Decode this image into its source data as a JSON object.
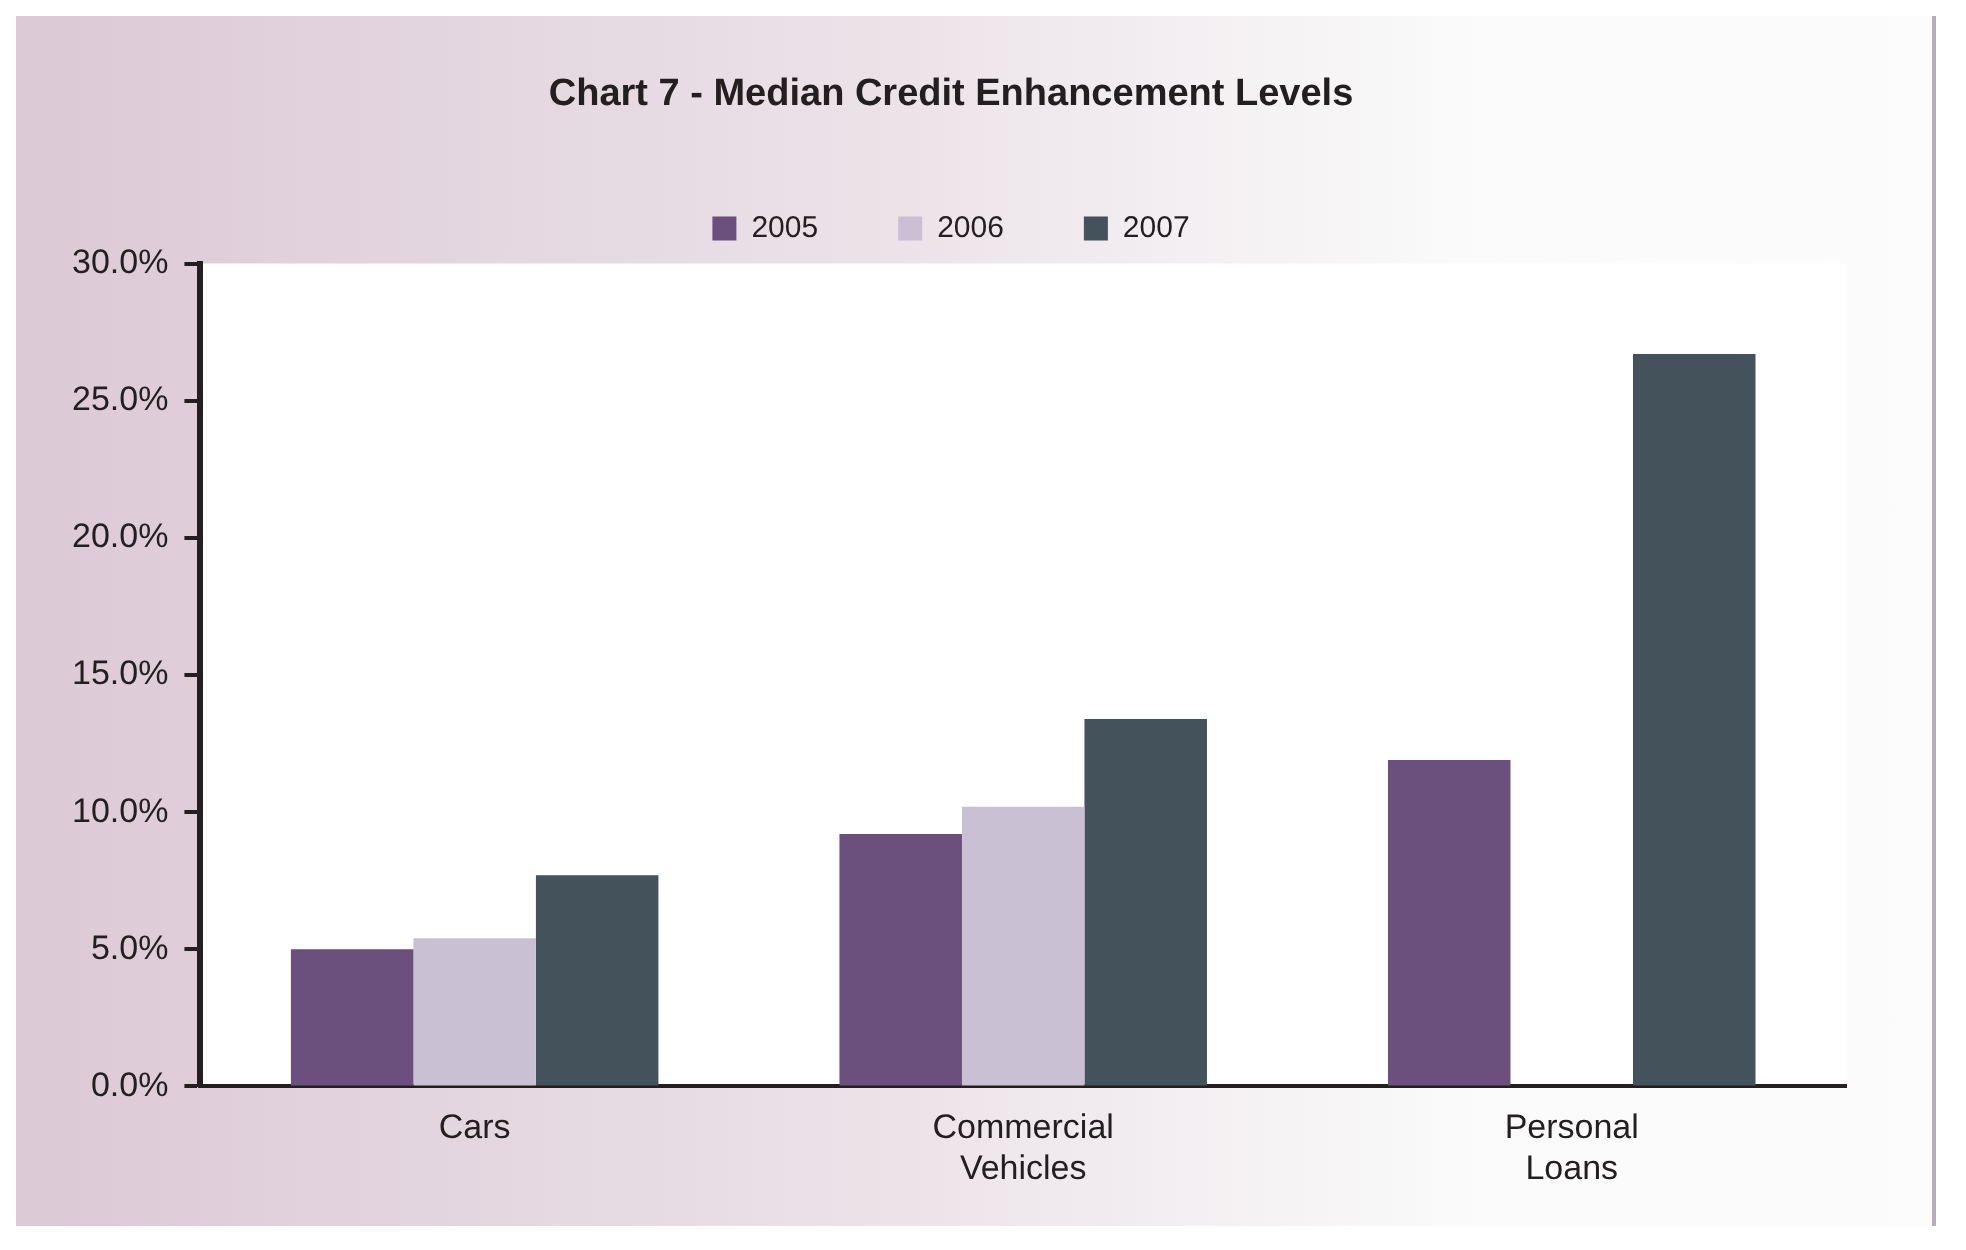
{
  "chart_data": {
    "type": "bar",
    "title": "Chart 7 - Median Credit Enhancement Levels",
    "categories": [
      "Cars",
      "Commercial Vehicles",
      "Personal Loans"
    ],
    "series": [
      {
        "name": "2005",
        "color": "#6b4f7c",
        "values": [
          5.0,
          9.2,
          11.9
        ]
      },
      {
        "name": "2006",
        "color": "#c9c0d4",
        "values": [
          5.4,
          10.2,
          null
        ]
      },
      {
        "name": "2007",
        "color": "#43525b",
        "values": [
          7.7,
          13.4,
          26.7
        ]
      }
    ],
    "ylim": [
      0,
      30
    ],
    "yticks": [
      {
        "value": 0,
        "label": "0.0%"
      },
      {
        "value": 5,
        "label": "5.0%"
      },
      {
        "value": 10,
        "label": "10.0%"
      },
      {
        "value": 15,
        "label": "15.0%"
      },
      {
        "value": 20,
        "label": "20.0%"
      },
      {
        "value": 25,
        "label": "25.0%"
      },
      {
        "value": 30,
        "label": "30.0%"
      }
    ],
    "grid": false,
    "legend": "top"
  }
}
